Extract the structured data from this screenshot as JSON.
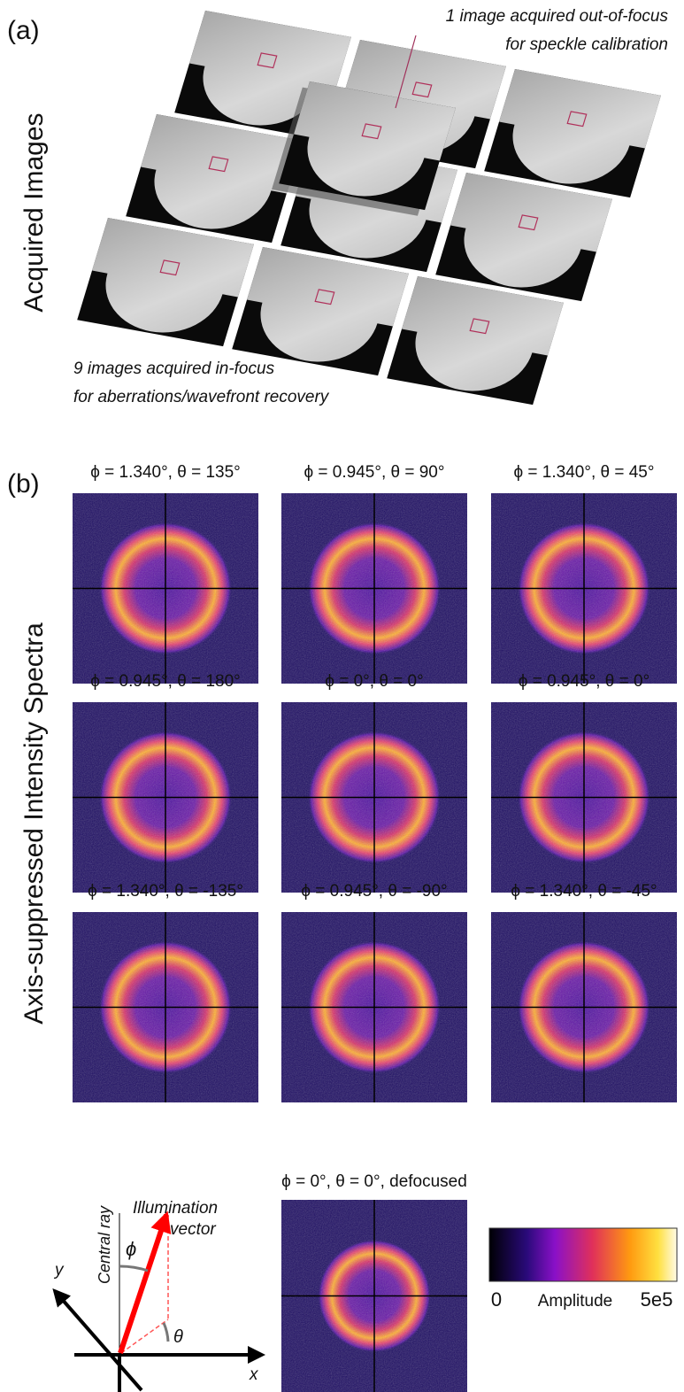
{
  "panel_a": {
    "label": "(a)",
    "side_label": "Acquired Images",
    "top_note": [
      "1 image acquired out-of-focus",
      "for speckle calibration"
    ],
    "bottom_note": [
      "9 images acquired in-focus",
      "for aberrations/wavefront recovery"
    ]
  },
  "panel_b": {
    "label": "(b)",
    "side_label": "Axis-suppressed Intensity Spectra",
    "spectra_titles": [
      "ϕ = 1.340°, θ = 135°",
      "ϕ = 0.945°, θ = 90°",
      "ϕ = 1.340°, θ = 45°",
      "ϕ = 0.945°, θ = 180°",
      "ϕ = 0°, θ = 0°",
      "ϕ = 0.945°, θ = 0°",
      "ϕ = 1.340°, θ = -135°",
      "ϕ = 0.945°, θ = -90°",
      "ϕ = 1.340°, θ = -45°"
    ],
    "defocused_title": "ϕ = 0°, θ = 0°, defocused",
    "colorbar": {
      "min_label": "0",
      "label": "Amplitude",
      "max_label": "5e5"
    },
    "diagram": {
      "central_ray": "Central ray",
      "illumination": [
        "Illumination",
        "vector"
      ],
      "y_axis": "y",
      "x_axis": "x",
      "phi": "ϕ",
      "theta": "θ"
    }
  }
}
